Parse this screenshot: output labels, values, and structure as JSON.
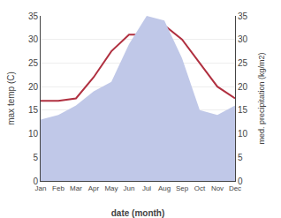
{
  "chart_data": {
    "type": "line",
    "xlabel": "date (month)",
    "ylabel": "max temp (C)",
    "y2label": "med. precipitation (kg/m2)",
    "categories": [
      "Jan",
      "Feb",
      "Mar",
      "Apr",
      "May",
      "Jun",
      "Jul",
      "Aug",
      "Sep",
      "Oct",
      "Nov",
      "Dec"
    ],
    "series": [
      {
        "type": "area",
        "axis": "y2",
        "color": "#c0c8e8",
        "values": [
          13,
          14,
          16,
          19,
          21,
          29,
          35,
          34,
          26,
          15,
          14,
          16
        ]
      },
      {
        "type": "line",
        "color": "#b03040",
        "values": [
          17,
          17,
          17.5,
          22,
          27.5,
          31,
          31,
          33,
          30,
          25,
          20,
          17.5
        ]
      }
    ],
    "ylim": [
      0,
      35
    ],
    "yticks": [
      0,
      5,
      10,
      15,
      20,
      25,
      30,
      35
    ],
    "y2lim": [
      0,
      35
    ],
    "y2ticks": [
      0,
      5,
      10,
      15,
      20,
      25,
      30,
      35
    ],
    "grid": true
  }
}
